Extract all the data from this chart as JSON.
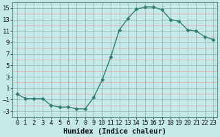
{
  "x": [
    0,
    1,
    2,
    3,
    4,
    5,
    6,
    7,
    8,
    9,
    10,
    11,
    12,
    13,
    14,
    15,
    16,
    17,
    18,
    19,
    20,
    21,
    22,
    23
  ],
  "y": [
    0.0,
    -0.8,
    -0.8,
    -0.8,
    -2.0,
    -2.3,
    -2.3,
    -2.6,
    -2.6,
    -0.6,
    2.5,
    6.5,
    11.2,
    13.2,
    14.8,
    15.2,
    15.2,
    14.7,
    13.0,
    12.7,
    11.2,
    11.0,
    10.0,
    9.5
  ],
  "xlabel": "Humidex (Indice chaleur)",
  "line_color": "#2e7d6e",
  "marker": "D",
  "marker_size": 2.5,
  "bg_color": "#c5e8e8",
  "ylim": [
    -4,
    16
  ],
  "xlim": [
    -0.5,
    23.5
  ],
  "yticks": [
    -3,
    -1,
    1,
    3,
    5,
    7,
    9,
    11,
    13,
    15
  ],
  "xticks": [
    0,
    1,
    2,
    3,
    4,
    5,
    6,
    7,
    8,
    9,
    10,
    11,
    12,
    13,
    14,
    15,
    16,
    17,
    18,
    19,
    20,
    21,
    22,
    23
  ],
  "xlabel_fontsize": 7.5,
  "tick_fontsize": 6.5,
  "major_grid_color": "#9bbebe",
  "minor_grid_color": "#e8a8a8"
}
